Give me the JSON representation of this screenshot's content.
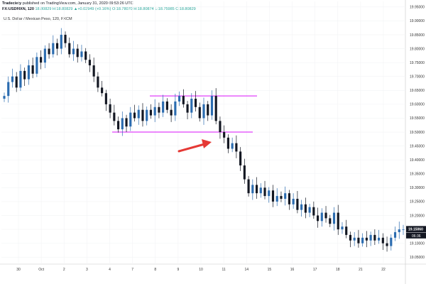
{
  "header": {
    "author": "Tradeciety",
    "published": "published on TradingView.com, January 31, 2020 09:53:26 UTC",
    "symbol": "FX:USDMXN, 120",
    "ohlc": "18.80829 H:18.80829 ▲+0.02949 (+0.16%) O:18.78070 H:18.80874 L:18.75985 C:18.80829",
    "series_title": "U.S. Dollar / Mexican Peso, 120, FXCM"
  },
  "colors": {
    "candle": "#2b6cb0",
    "zone": "#e040fb",
    "arrow": "#e53935",
    "label_bg": "#131722"
  },
  "chart_data": {
    "type": "candlestick",
    "y_ticks": [
      "19.95000",
      "19.90000",
      "19.85000",
      "19.80000",
      "19.75000",
      "19.70000",
      "19.65000",
      "19.60000",
      "19.55000",
      "19.50000",
      "19.45000",
      "19.40000",
      "19.35000",
      "19.30000",
      "19.25000",
      "19.20000",
      "19.15000",
      "19.10000",
      "19.05000"
    ],
    "x_ticks": [
      "30",
      "Oct",
      "2",
      "3",
      "4",
      "7",
      "8",
      "9",
      "10",
      "11",
      "14",
      "15",
      "16",
      "17",
      "18",
      "21",
      "22"
    ],
    "ylim": [
      19.025,
      19.97
    ],
    "last_price_label": "19.15060",
    "countdown_label": "06:36",
    "zone_upper": 19.63,
    "zone_lower": 19.5,
    "closes": [
      19.63,
      19.68,
      19.7,
      19.66,
      19.72,
      19.69,
      19.74,
      19.71,
      19.77,
      19.75,
      19.8,
      19.78,
      19.82,
      19.8,
      19.85,
      19.82,
      19.78,
      19.8,
      19.77,
      19.79,
      19.76,
      19.74,
      19.7,
      19.66,
      19.64,
      19.6,
      19.57,
      19.54,
      19.51,
      19.55,
      19.52,
      19.57,
      19.55,
      19.58,
      19.54,
      19.58,
      19.56,
      19.59,
      19.57,
      19.61,
      19.58,
      19.56,
      19.61,
      19.63,
      19.6,
      19.57,
      19.62,
      19.59,
      19.55,
      19.6,
      19.56,
      19.63,
      19.54,
      19.5,
      19.48,
      19.44,
      19.46,
      19.43,
      19.38,
      19.33,
      19.28,
      19.31,
      19.28,
      19.3,
      19.27,
      19.29,
      19.25,
      19.27,
      19.26,
      19.28,
      19.24,
      19.26,
      19.22,
      19.24,
      19.21,
      19.23,
      19.2,
      19.18,
      19.21,
      19.19,
      19.17,
      19.21,
      19.15,
      19.16,
      19.13,
      19.11,
      19.12,
      19.1,
      19.12,
      19.11,
      19.13,
      19.11,
      19.12,
      19.1,
      19.09,
      19.12,
      19.14,
      19.15,
      19.15
    ]
  }
}
